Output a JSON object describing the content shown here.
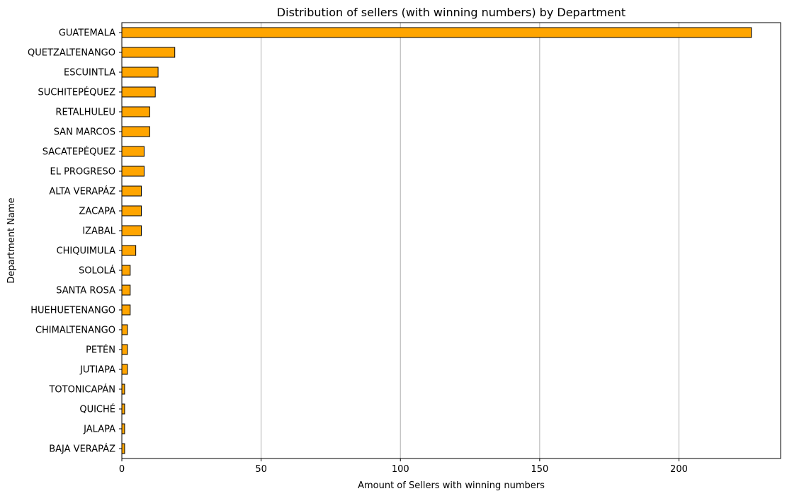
{
  "chart_data": {
    "type": "bar",
    "orientation": "horizontal",
    "title": "Distribution of sellers (with winning numbers) by Department",
    "xlabel": "Amount of Sellers with winning numbers",
    "ylabel": "Department Name",
    "xlim": [
      0,
      236.5
    ],
    "xticks": [
      0,
      50,
      100,
      150,
      200
    ],
    "grid": "vertical",
    "bar_color": "#ffa500",
    "edge_color": "#000000",
    "categories": [
      "GUATEMALA",
      "QUETZALTENANGO",
      "ESCUINTLA",
      "SUCHITEPÉQUEZ",
      "RETALHULEU",
      "SAN MARCOS",
      "SACATEPÉQUEZ",
      "EL PROGRESO",
      "ALTA VERAPÁZ",
      "ZACAPA",
      "IZABAL",
      "CHIQUIMULA",
      "SOLOLÁ",
      "SANTA ROSA",
      "HUEHUETENANGO",
      "CHIMALTENANGO",
      "PETÉN",
      "JUTIAPA",
      "TOTONICAPÁN",
      "QUICHÉ",
      "JALAPA",
      "BAJA VERAPÁZ"
    ],
    "values": [
      226,
      19,
      13,
      12,
      10,
      10,
      8,
      8,
      7,
      7,
      7,
      5,
      3,
      3,
      3,
      2,
      2,
      2,
      1,
      1,
      1,
      1
    ]
  }
}
